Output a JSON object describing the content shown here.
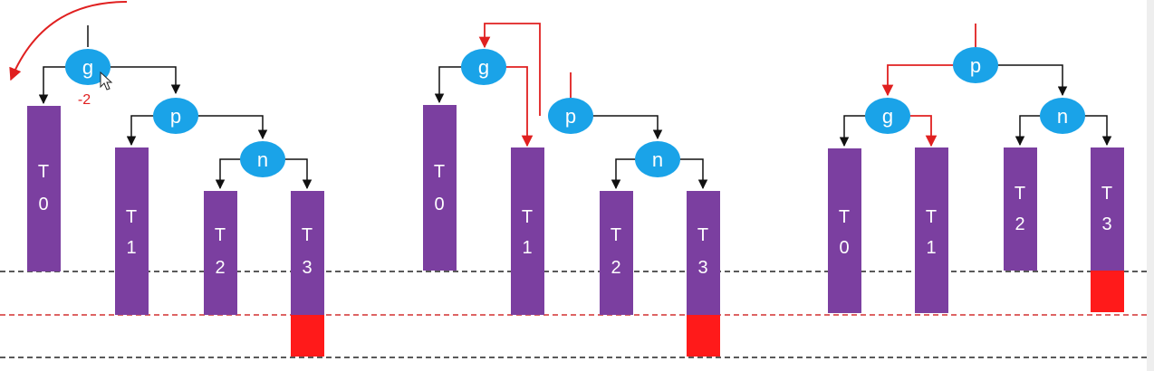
{
  "colors": {
    "node": "#1aa3e8",
    "subtree": "#7b3fa0",
    "overflow": "#ff1a1a",
    "edge": "#111111",
    "highlight": "#e02020",
    "guide_black": "#222222",
    "guide_red": "#d23030"
  },
  "diagram1": {
    "node_g": "g",
    "balance_factor": "-2",
    "node_p": "p",
    "node_n": "n",
    "t0": [
      "T",
      "0"
    ],
    "t1": [
      "T",
      "1"
    ],
    "t2": [
      "T",
      "2"
    ],
    "t3": [
      "T",
      "3"
    ]
  },
  "diagram2": {
    "node_g": "g",
    "node_p": "p",
    "node_n": "n",
    "t0": [
      "T",
      "0"
    ],
    "t1": [
      "T",
      "1"
    ],
    "t2": [
      "T",
      "2"
    ],
    "t3": [
      "T",
      "3"
    ]
  },
  "diagram3": {
    "node_p": "p",
    "node_g": "g",
    "node_n": "n",
    "t0": [
      "T",
      "0"
    ],
    "t1": [
      "T",
      "1"
    ],
    "t2": [
      "T",
      "2"
    ],
    "t3": [
      "T",
      "3"
    ]
  },
  "icons": {
    "cursor": "mouse-cursor-icon",
    "rotate": "rotate-arrow-icon"
  }
}
